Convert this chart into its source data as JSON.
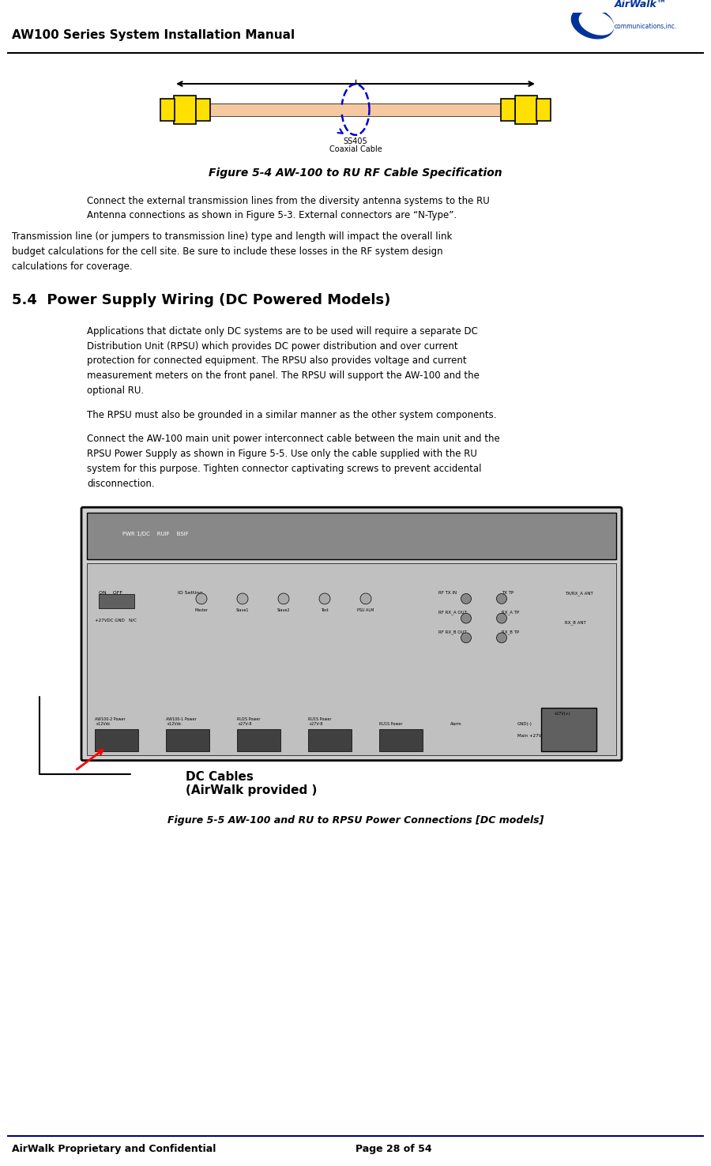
{
  "title_header": "AW100 Series System Installation Manual",
  "footer_left": "AirWalk Proprietary and Confidential",
  "footer_right": "Page 28 of 54",
  "figure4_caption": "Figure 5-4 AW-100 to RU RF Cable Specification",
  "figure5_caption": "Figure 5-5 AW-100 and RU to RPSU Power Connections [DC models]",
  "section_title": "5.4  Power Supply Wiring (DC Powered Models)",
  "para1": "Connect the external transmission lines from the diversity antenna systems to the RU\nAntenna connections as shown in Figure 5-3. External connectors are “N-Type”.",
  "para2": "Transmission line (or jumpers to transmission line) type and length will impact the overall link\nbudget calculations for the cell site. Be sure to include these losses in the RF system design\ncalculations for coverage.",
  "para3": "Applications that dictate only DC systems are to be used will require a separate DC\nDistribution Unit (RPSU) which provides DC power distribution and over current\nprotection for connected equipment. The RPSU also provides voltage and current\nmeasurement meters on the front panel. The RPSU will support the AW-100 and the\noptional RU.",
  "para4": "The RPSU must also be grounded in a similar manner as the other system components.",
  "para5": "Connect the AW-100 main unit power interconnect cable between the main unit and the\nRPSU Power Supply as shown in Figure 5-5. Use only the cable supplied with the RU\nsystem for this purpose. Tighten connector captivating screws to prevent accidental\ndisconnection.",
  "dc_cables_label": "DC Cables\n(AirWalk provided )",
  "cable_label1": "SS405",
  "cable_label2": "Coaxial Cable",
  "yellow": "#FFE000",
  "peach": "#F5C8A0",
  "blue_circle": "#0000CC",
  "header_line_color": "#000000",
  "footer_line_color": "#000080",
  "bg_color": "#FFFFFF"
}
